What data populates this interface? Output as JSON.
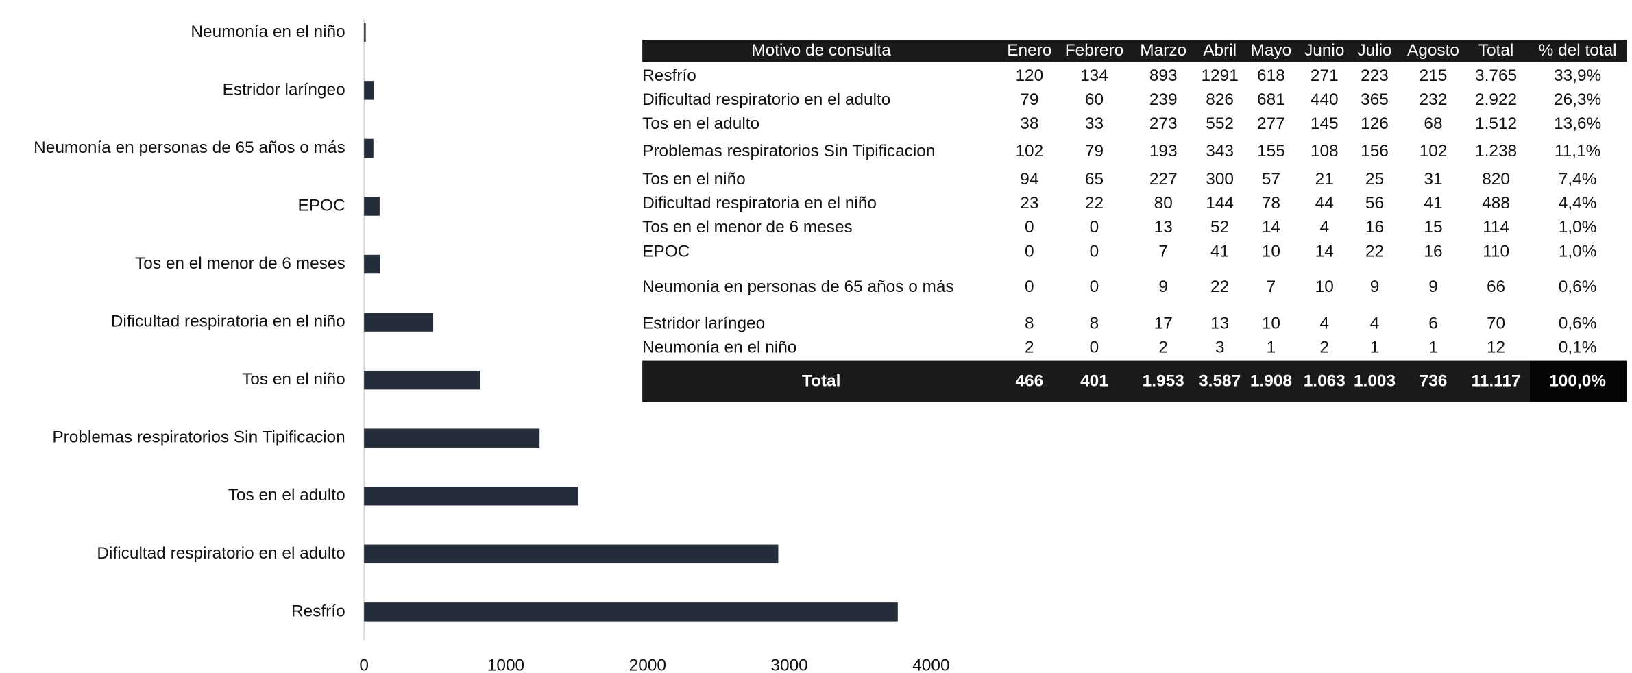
{
  "chart_data": {
    "type": "barh",
    "categories": [
      "Neumonía en el niño",
      "Estridor laríngeo",
      "Neumonía en personas de 65 años o más",
      "EPOC",
      "Tos en el menor de 6 meses",
      "Dificultad respiratoria en el niño",
      "Tos en el niño",
      "Problemas respiratorios Sin Tipificacion",
      "Tos en el adulto",
      "Dificultad respiratorio en el adulto",
      "Resfrío"
    ],
    "values": [
      12,
      70,
      66,
      110,
      114,
      488,
      820,
      1238,
      1512,
      2922,
      3765
    ],
    "color": "#262d3a",
    "xlim": [
      0,
      4000
    ],
    "xticks": [
      0,
      1000,
      2000,
      3000,
      4000
    ]
  },
  "table": {
    "header": [
      "Motivo de consulta",
      "Enero",
      "Febrero",
      "Marzo",
      "Abril",
      "Mayo",
      "Junio",
      "Julio",
      "Agosto",
      "Total",
      "% del total"
    ],
    "rows": [
      [
        "Resfrío",
        "120",
        "134",
        "893",
        "1291",
        "618",
        "271",
        "223",
        "215",
        "3.765",
        "33,9%"
      ],
      [
        "Dificultad respiratorio en el adulto",
        "79",
        "60",
        "239",
        "826",
        "681",
        "440",
        "365",
        "232",
        "2.922",
        "26,3%"
      ],
      [
        "Tos en el adulto",
        "38",
        "33",
        "273",
        "552",
        "277",
        "145",
        "126",
        "68",
        "1.512",
        "13,6%"
      ],
      [
        "Problemas respiratorios Sin Tipificacion",
        "102",
        "79",
        "193",
        "343",
        "155",
        "108",
        "156",
        "102",
        "1.238",
        "11,1%"
      ],
      [
        "Tos en el niño",
        "94",
        "65",
        "227",
        "300",
        "57",
        "21",
        "25",
        "31",
        "820",
        "7,4%"
      ],
      [
        "Dificultad respiratoria en el niño",
        "23",
        "22",
        "80",
        "144",
        "78",
        "44",
        "56",
        "41",
        "488",
        "4,4%"
      ],
      [
        "Tos en el menor de 6 meses",
        "0",
        "0",
        "13",
        "52",
        "14",
        "4",
        "16",
        "15",
        "114",
        "1,0%"
      ],
      [
        "EPOC",
        "0",
        "0",
        "7",
        "41",
        "10",
        "14",
        "22",
        "16",
        "110",
        "1,0%"
      ],
      [
        "Neumonía en personas de 65 años o más",
        "0",
        "0",
        "9",
        "22",
        "7",
        "10",
        "9",
        "9",
        "66",
        "0,6%"
      ],
      [
        "Estridor laríngeo",
        "8",
        "8",
        "17",
        "13",
        "10",
        "4",
        "4",
        "6",
        "70",
        "0,6%"
      ],
      [
        "Neumonía en el niño",
        "2",
        "0",
        "2",
        "3",
        "1",
        "2",
        "1",
        "1",
        "12",
        "0,1%"
      ]
    ],
    "total": [
      "Total",
      "466",
      "401",
      "1.953",
      "3.587",
      "1.908",
      "1.063",
      "1.003",
      "736",
      "11.117",
      "100,0%"
    ]
  }
}
